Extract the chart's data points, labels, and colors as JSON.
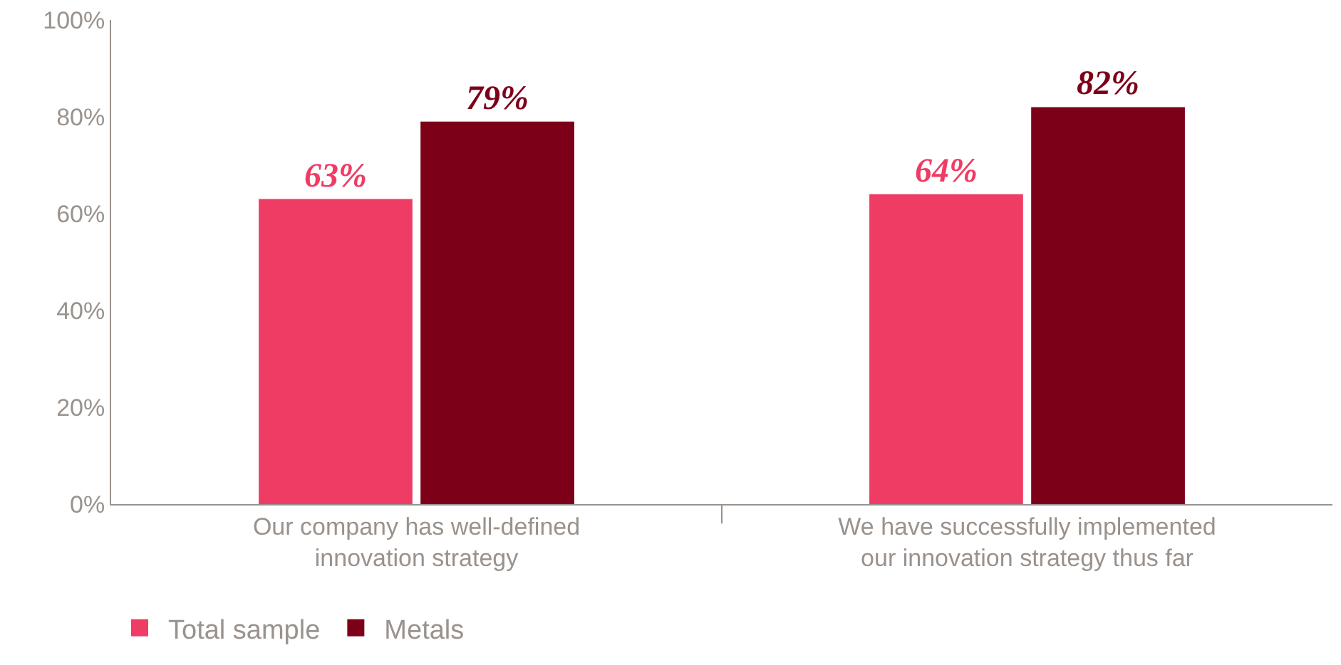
{
  "chart_data": {
    "type": "bar",
    "categories": [
      "Our company has well-defined innovation strategy",
      "We have successfully implemented our innovation strategy thus far"
    ],
    "series": [
      {
        "name": "Total sample",
        "color": "#ef3c64",
        "values": [
          63,
          64
        ],
        "value_labels": [
          "63%",
          "64%"
        ]
      },
      {
        "name": "Metals",
        "color": "#7d0019",
        "values": [
          79,
          82
        ],
        "value_labels": [
          "79%",
          "82%"
        ]
      }
    ],
    "ylim": [
      0,
      100
    ],
    "yticks": [
      {
        "value": 0,
        "label": "0%"
      },
      {
        "value": 20,
        "label": "20%"
      },
      {
        "value": 40,
        "label": "40%"
      },
      {
        "value": 60,
        "label": "60%"
      },
      {
        "value": 80,
        "label": "80%"
      },
      {
        "value": 100,
        "label": "100%"
      }
    ],
    "legend": "bottom left"
  }
}
